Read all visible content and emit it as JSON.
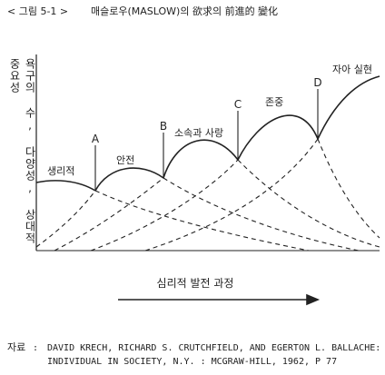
{
  "caption": {
    "number": "< 그림 5-1 >",
    "title": "매슬로우(MASLOW)의 欲求의 前進的 變化"
  },
  "y_axis_label": "욕구의 수, 다양성, 상대적 중요성",
  "x_axis_label": "심리적 발전 과정",
  "needs": [
    {
      "label": "생리적"
    },
    {
      "label": "안전",
      "marker": "A"
    },
    {
      "label": "소속과 사랑",
      "marker": "B"
    },
    {
      "label": "존중",
      "marker": "C"
    },
    {
      "label": "자아 실현",
      "marker": "D"
    }
  ],
  "source": {
    "label": "자료",
    "lines": [
      "DAVID KRECH, RICHARD S. CRUTCHFIELD, AND EGERTON L. BALLACHE:",
      "INDIVIDUAL IN SOCIETY, N.Y. : MCGRAW-HILL, 1962, P 77"
    ]
  }
}
